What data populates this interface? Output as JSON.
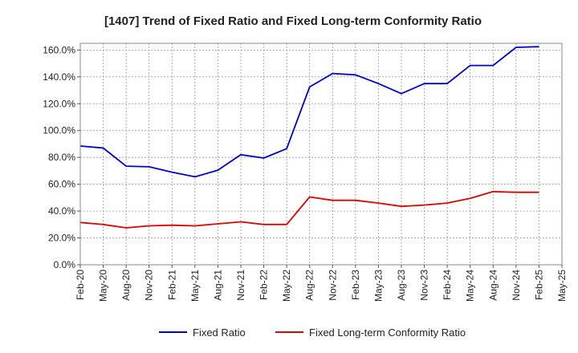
{
  "chart_data": {
    "type": "line",
    "title": "[1407]  Trend of Fixed Ratio and Fixed Long-term Conformity Ratio",
    "xlabel": "",
    "ylabel": "",
    "x_ticks": [
      "Feb-20",
      "May-20",
      "Aug-20",
      "Nov-20",
      "Feb-21",
      "May-21",
      "Aug-21",
      "Nov-21",
      "Feb-22",
      "May-22",
      "Aug-22",
      "Nov-22",
      "Feb-23",
      "May-23",
      "Aug-23",
      "Nov-23",
      "Feb-24",
      "May-24",
      "Aug-24",
      "Nov-24",
      "Feb-25",
      "May-25"
    ],
    "x": [
      "Feb-20",
      "May-20",
      "Aug-20",
      "Nov-20",
      "Feb-21",
      "May-21",
      "Aug-21",
      "Nov-21",
      "Feb-22",
      "May-22",
      "Aug-22",
      "Nov-22",
      "Feb-23",
      "May-23",
      "Aug-23",
      "Nov-23",
      "Feb-24",
      "May-24",
      "Aug-24",
      "Nov-24",
      "Feb-25"
    ],
    "y_ticks": [
      "0.0%",
      "20.0%",
      "40.0%",
      "60.0%",
      "80.0%",
      "100.0%",
      "120.0%",
      "140.0%",
      "160.0%"
    ],
    "ylim": [
      0,
      165
    ],
    "grid": true,
    "legend_position": "bottom",
    "series": [
      {
        "name": "Fixed Ratio",
        "color": "#0000cc",
        "values": [
          88.5,
          87.0,
          73.5,
          73.0,
          69.0,
          65.5,
          70.5,
          82.0,
          79.5,
          86.5,
          132.5,
          142.5,
          141.5,
          135.0,
          127.5,
          135.0,
          135.0,
          148.5,
          148.5,
          162.0,
          162.5
        ]
      },
      {
        "name": "Fixed Long-term Conformity Ratio",
        "color": "#dd0000",
        "values": [
          31.5,
          30.0,
          27.5,
          29.0,
          29.5,
          29.0,
          30.5,
          32.0,
          30.0,
          30.0,
          50.5,
          48.0,
          48.0,
          46.0,
          43.5,
          44.5,
          46.0,
          49.5,
          54.5,
          54.0,
          54.0
        ]
      }
    ]
  }
}
